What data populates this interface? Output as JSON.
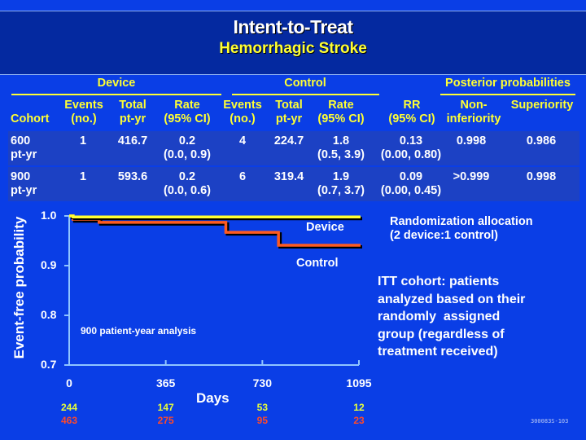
{
  "slide": {
    "title": "Intent-to-Treat",
    "subtitle": "Hemorrhagic Stroke",
    "code": "300083S-103"
  },
  "table": {
    "groups": [
      "Device",
      "Control",
      "Posterior probabilities"
    ],
    "headers": {
      "cohort": "Cohort",
      "dev_events": [
        "Events",
        "(no.)"
      ],
      "dev_total": [
        "Total",
        "pt-yr"
      ],
      "dev_rate": [
        "Rate",
        "(95% CI)"
      ],
      "ctl_events": [
        "Events",
        "(no.)"
      ],
      "ctl_total": [
        "Total",
        "pt-yr"
      ],
      "ctl_rate": [
        "Rate",
        "(95% CI)"
      ],
      "rr": [
        "RR",
        "(95% CI)"
      ],
      "noninf": [
        "Non-",
        "inferiority"
      ],
      "sup": "Superiority"
    },
    "rows": [
      {
        "cohort": [
          "600",
          "pt-yr"
        ],
        "dev_events": "1",
        "dev_total": "416.7",
        "dev_rate": "0.2",
        "dev_ci": "(0.0, 0.9)",
        "ctl_events": "4",
        "ctl_total": "224.7",
        "ctl_rate": "1.8",
        "ctl_ci": "(0.5, 3.9)",
        "rr": "0.13",
        "rr_ci": "(0.00, 0.80)",
        "noninf": "0.998",
        "sup": "0.986"
      },
      {
        "cohort": [
          "900",
          "pt-yr"
        ],
        "dev_events": "1",
        "dev_total": "593.6",
        "dev_rate": "0.2",
        "dev_ci": "(0.0, 0.6)",
        "ctl_events": "6",
        "ctl_total": "319.4",
        "ctl_rate": "1.9",
        "ctl_ci": "(0.7, 3.7)",
        "rr": "0.09",
        "rr_ci": "(0.00, 0.45)",
        "noninf": ">0.999",
        "sup": "0.998"
      }
    ]
  },
  "notes": {
    "allocation": [
      "Randomization allocation",
      "(2 device:1 control)"
    ],
    "itt": [
      "ITT cohort: patients",
      "analyzed based on their",
      "randomly  assigned",
      "group (regardless of",
      "treatment received)"
    ]
  },
  "chart_data": {
    "type": "line",
    "title": "900 patient-year analysis",
    "xlabel": "Days",
    "ylabel": "Event-free probability",
    "xlim": [
      0,
      1095
    ],
    "ylim": [
      0.7,
      1.0
    ],
    "xticks": [
      "0",
      "365",
      "730",
      "1095"
    ],
    "xtick_values": [
      0,
      365,
      730,
      1095
    ],
    "yticks": [
      "1.0",
      "0.9",
      "0.8",
      "0.7"
    ],
    "ytick_values": [
      1.0,
      0.9,
      0.8,
      0.7
    ],
    "series": [
      {
        "name": "Device",
        "color": "#ffff33",
        "step": true,
        "x": [
          0,
          15,
          1095
        ],
        "y": [
          1.0,
          0.998,
          0.998
        ]
      },
      {
        "name": "Control",
        "color": "#ff5a1f",
        "step": true,
        "x": [
          0,
          15,
          113,
          592,
          791,
          1095
        ],
        "y": [
          1.0,
          0.993,
          0.987,
          0.967,
          0.941,
          0.941
        ]
      }
    ],
    "at_risk": [
      {
        "name": "Device",
        "color": "#e8ff3a",
        "values": [
          "244",
          "147",
          "53",
          "12"
        ]
      },
      {
        "name": "Control",
        "color": "#ff4a2a",
        "values": [
          "463",
          "275",
          "95",
          "23"
        ]
      }
    ]
  }
}
